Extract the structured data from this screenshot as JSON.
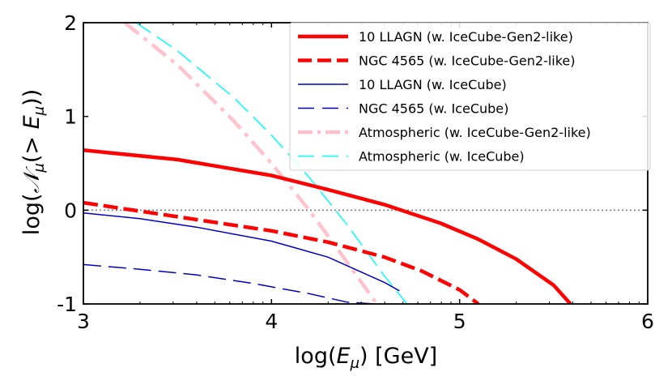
{
  "chart_data": {
    "type": "line",
    "xlabel": "log(E_μ) [GeV]",
    "xlabel_main": "log(",
    "xlabel_var": "E",
    "xlabel_sub": "μ",
    "xlabel_tail": ") [GeV]",
    "ylabel": "log(𝒩_μ(> E_μ))",
    "ylabel_main": "log(",
    "ylabel_var": "𝒩",
    "ylabel_sub": "μ",
    "ylabel_mid": "(> ",
    "ylabel_var2": "E",
    "ylabel_sub2": "μ",
    "ylabel_tail": "))",
    "xlim": [
      3,
      6
    ],
    "ylim": [
      -1,
      2
    ],
    "xticks": [
      3,
      4,
      5,
      6
    ],
    "xtick_labels": [
      "3",
      "4",
      "5",
      "6"
    ],
    "yticks": [
      -1,
      0,
      1,
      2
    ],
    "ytick_labels": [
      "-1",
      "0",
      "1",
      "2"
    ],
    "hline": 0,
    "legend_position": "top-right",
    "series": [
      {
        "name": "10 LLAGN (w. IceCube-Gen2-like)",
        "color": "#ff0000",
        "style": "solid",
        "weight": "thick",
        "x": [
          3.0,
          3.5,
          4.0,
          4.3,
          4.6,
          4.9,
          5.1,
          5.3,
          5.5,
          5.59
        ],
        "y": [
          0.64,
          0.54,
          0.37,
          0.22,
          0.06,
          -0.14,
          -0.31,
          -0.52,
          -0.8,
          -1.0
        ]
      },
      {
        "name": "NGC 4565 (w. IceCube-Gen2-like)",
        "color": "#ff0000",
        "style": "dashed",
        "weight": "thick",
        "x": [
          3.0,
          3.5,
          4.0,
          4.3,
          4.6,
          4.8,
          5.0,
          5.1
        ],
        "y": [
          0.08,
          -0.07,
          -0.22,
          -0.34,
          -0.5,
          -0.65,
          -0.85,
          -1.0
        ]
      },
      {
        "name": "10 LLAGN (w. IceCube)",
        "color": "#0000cd",
        "style": "solid",
        "weight": "thin",
        "x": [
          3.0,
          3.3,
          3.6,
          4.0,
          4.3,
          4.6,
          4.68
        ],
        "y": [
          -0.03,
          -0.09,
          -0.18,
          -0.33,
          -0.5,
          -0.77,
          -0.86
        ]
      },
      {
        "name": "NGC 4565 (w. IceCube)",
        "color": "#0000cd",
        "style": "dashed",
        "weight": "thin",
        "x": [
          3.0,
          3.3,
          3.6,
          3.9,
          4.2,
          4.4,
          4.55
        ],
        "y": [
          -0.58,
          -0.63,
          -0.69,
          -0.78,
          -0.89,
          -0.98,
          -1.0
        ]
      },
      {
        "name": "Atmospheric (w. IceCube-Gen2-like)",
        "color": "#ffc0cb",
        "style": "dashdot",
        "weight": "thick",
        "x": [
          3.22,
          3.5,
          3.8,
          4.0,
          4.2,
          4.4,
          4.56
        ],
        "y": [
          2.0,
          1.55,
          0.95,
          0.5,
          0.0,
          -0.55,
          -1.0
        ]
      },
      {
        "name": "Atmospheric (w. IceCube)",
        "color": "#00ffff",
        "style": "dashed",
        "weight": "thin",
        "x": [
          3.28,
          3.5,
          3.8,
          4.0,
          4.2,
          4.4,
          4.6,
          4.72
        ],
        "y": [
          2.0,
          1.7,
          1.2,
          0.8,
          0.35,
          -0.15,
          -0.7,
          -1.0
        ]
      }
    ]
  }
}
